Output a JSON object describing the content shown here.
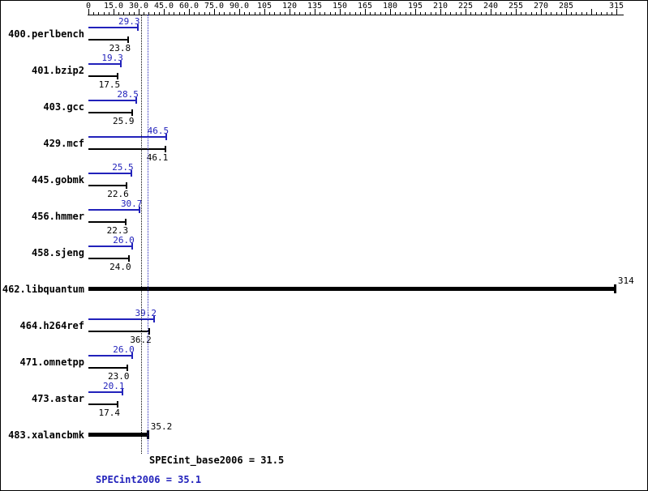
{
  "colors": {
    "peak": "#2222bb",
    "base": "#000000",
    "background": "#ffffff"
  },
  "axis": {
    "min": 0,
    "max": 315,
    "major_step": 15,
    "minor_step": 3,
    "tick_labels": [
      "0",
      "15.0",
      "30.0",
      "45.0",
      "60.0",
      "75.0",
      "90.0",
      "105",
      "120",
      "135",
      "150",
      "165",
      "180",
      "195",
      "210",
      "225",
      "240",
      "255",
      "270",
      "285",
      "",
      "315"
    ]
  },
  "rows": [
    {
      "name": "400.perlbench",
      "peak": "29.3",
      "base": "23.8",
      "single": false
    },
    {
      "name": "401.bzip2",
      "peak": "19.3",
      "base": "17.5",
      "single": false
    },
    {
      "name": "403.gcc",
      "peak": "28.5",
      "base": "25.9",
      "single": false
    },
    {
      "name": "429.mcf",
      "peak": "46.5",
      "base": "46.1",
      "single": false
    },
    {
      "name": "445.gobmk",
      "peak": "25.5",
      "base": "22.6",
      "single": false
    },
    {
      "name": "456.hmmer",
      "peak": "30.7",
      "base": "22.3",
      "single": false
    },
    {
      "name": "458.sjeng",
      "peak": "26.0",
      "base": "24.0",
      "single": false
    },
    {
      "name": "462.libquantum",
      "peak": null,
      "base": "314",
      "single": true
    },
    {
      "name": "464.h264ref",
      "peak": "39.2",
      "base": "36.2",
      "single": false
    },
    {
      "name": "471.omnetpp",
      "peak": "26.0",
      "base": "23.0",
      "single": false
    },
    {
      "name": "473.astar",
      "peak": "20.1",
      "base": "17.4",
      "single": false
    },
    {
      "name": "483.xalancbmk",
      "peak": null,
      "base": "35.2",
      "single": true
    }
  ],
  "summary": {
    "base_text": "SPECint_base2006 = 31.5",
    "peak_text": "SPECint2006 = 35.1",
    "base_value": 31.5,
    "peak_value": 35.1
  },
  "chart_data": {
    "type": "bar",
    "orientation": "horizontal",
    "title": "",
    "xlabel": "",
    "ylabel": "",
    "xlim": [
      0,
      315
    ],
    "x_major_tick": 15,
    "x_minor_tick": 3,
    "grid": false,
    "legend_position": "none",
    "categories": [
      "400.perlbench",
      "401.bzip2",
      "403.gcc",
      "429.mcf",
      "445.gobmk",
      "456.hmmer",
      "458.sjeng",
      "462.libquantum",
      "464.h264ref",
      "471.omnetpp",
      "473.astar",
      "483.xalancbmk"
    ],
    "series": [
      {
        "name": "SPECint2006 (peak)",
        "color": "#2222bb",
        "values": [
          29.3,
          19.3,
          28.5,
          46.5,
          25.5,
          30.7,
          26.0,
          null,
          39.2,
          26.0,
          20.1,
          null
        ]
      },
      {
        "name": "SPECint_base2006 (base)",
        "color": "#000000",
        "values": [
          23.8,
          17.5,
          25.9,
          46.1,
          22.6,
          22.3,
          24.0,
          314,
          36.2,
          23.0,
          17.4,
          35.2
        ]
      }
    ],
    "reference_lines": [
      {
        "value": 31.5,
        "color": "#000000",
        "style": "dotted",
        "label": "SPECint_base2006 = 31.5"
      },
      {
        "value": 35.1,
        "color": "#2222bb",
        "style": "dotted",
        "label": "SPECint2006 = 35.1"
      }
    ]
  }
}
